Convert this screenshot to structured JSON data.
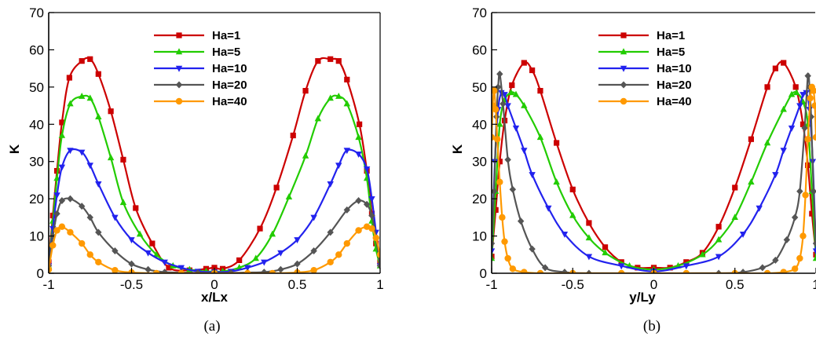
{
  "colors": {
    "Ha=1": "#cc0000",
    "Ha=5": "#22cc00",
    "Ha=10": "#2222ee",
    "Ha=20": "#555555",
    "Ha=40": "#ff9900"
  },
  "chart_data": [
    {
      "type": "line",
      "caption": "(a)",
      "xlabel": "x/Lx",
      "ylabel": "K",
      "xlim": [
        -1,
        1
      ],
      "ylim": [
        0,
        70
      ],
      "xticks": [
        "-1",
        "-0.5",
        "0",
        "0.5",
        "1"
      ],
      "yticks": [
        "0",
        "10",
        "20",
        "30",
        "40",
        "50",
        "60",
        "70"
      ],
      "legend_position": "top-center",
      "series": [
        {
          "name": "Ha=1",
          "color": "#cc0000",
          "marker": "square",
          "x": [
            -1,
            -0.975,
            -0.95,
            -0.92,
            -0.875,
            -0.8,
            -0.75,
            -0.7,
            -0.625,
            -0.55,
            -0.475,
            -0.375,
            -0.275,
            -0.15,
            -0.05,
            0,
            0.05,
            0.15,
            0.275,
            0.375,
            0.475,
            0.55,
            0.625,
            0.7,
            0.75,
            0.8,
            0.875,
            0.92,
            0.95,
            0.975,
            1
          ],
          "y": [
            3,
            15.5,
            27.5,
            40.5,
            52.5,
            57,
            57.5,
            53.5,
            43.5,
            30.5,
            17.5,
            8,
            1.5,
            0.8,
            1.2,
            1.5,
            1.2,
            3.5,
            12,
            23,
            37,
            49,
            57,
            57.5,
            57,
            52,
            40,
            27.5,
            16,
            8,
            3
          ]
        },
        {
          "name": "Ha=5",
          "color": "#22cc00",
          "marker": "triangle-up",
          "x": [
            -1,
            -0.975,
            -0.95,
            -0.92,
            -0.87,
            -0.8,
            -0.75,
            -0.7,
            -0.625,
            -0.55,
            -0.45,
            -0.35,
            -0.25,
            -0.15,
            -0.05,
            0,
            0.05,
            0.15,
            0.25,
            0.35,
            0.45,
            0.55,
            0.625,
            0.7,
            0.75,
            0.8,
            0.87,
            0.92,
            0.95,
            0.975,
            1
          ],
          "y": [
            2,
            14,
            25.5,
            37,
            45.5,
            47.5,
            47,
            42,
            31,
            19,
            10.5,
            5,
            2,
            1,
            0.5,
            0.5,
            0.5,
            1.5,
            4,
            10.5,
            20.5,
            31.5,
            41.5,
            47,
            47.5,
            45.5,
            36.5,
            25.5,
            14,
            6.5,
            2
          ]
        },
        {
          "name": "Ha=10",
          "color": "#2222ee",
          "marker": "triangle-down",
          "x": [
            -1,
            -0.975,
            -0.95,
            -0.92,
            -0.87,
            -0.8,
            -0.75,
            -0.7,
            -0.6,
            -0.5,
            -0.4,
            -0.3,
            -0.2,
            -0.1,
            0,
            0.1,
            0.2,
            0.3,
            0.4,
            0.5,
            0.6,
            0.7,
            0.75,
            0.8,
            0.87,
            0.92,
            0.95,
            0.975,
            1
          ],
          "y": [
            2,
            12,
            21,
            28.5,
            33,
            32.5,
            29,
            24,
            15,
            9,
            5.5,
            3,
            1.5,
            0.5,
            0.3,
            0.5,
            1.5,
            3,
            5.5,
            9,
            15,
            24,
            29,
            33,
            32,
            28,
            20,
            11,
            2
          ]
        },
        {
          "name": "Ha=20",
          "color": "#555555",
          "marker": "diamond",
          "x": [
            -1,
            -0.975,
            -0.95,
            -0.92,
            -0.87,
            -0.8,
            -0.75,
            -0.7,
            -0.6,
            -0.5,
            -0.4,
            -0.3,
            -0.2,
            -0.1,
            0,
            0.1,
            0.2,
            0.3,
            0.4,
            0.5,
            0.6,
            0.7,
            0.8,
            0.87,
            0.92,
            0.95,
            0.975,
            1
          ],
          "y": [
            2,
            10,
            16,
            19.5,
            20,
            18,
            15,
            11,
            6,
            2.5,
            1,
            0.3,
            0.2,
            0.1,
            0,
            0.1,
            0.2,
            0.3,
            1,
            2.5,
            6,
            11,
            17,
            19.5,
            18.5,
            15.5,
            9.5,
            2
          ]
        },
        {
          "name": "Ha=40",
          "color": "#ff9900",
          "marker": "circle",
          "x": [
            -1,
            -0.975,
            -0.95,
            -0.92,
            -0.87,
            -0.8,
            -0.75,
            -0.7,
            -0.6,
            -0.5,
            -0.35,
            -0.2,
            0,
            0.2,
            0.35,
            0.5,
            0.6,
            0.7,
            0.75,
            0.8,
            0.87,
            0.92,
            0.95,
            0.975,
            1
          ],
          "y": [
            1,
            7.5,
            11.5,
            12.5,
            11,
            8,
            5,
            3,
            0.8,
            0.2,
            0,
            0,
            0,
            0,
            0,
            0.2,
            0.8,
            3,
            5,
            8,
            11.5,
            12.5,
            12,
            9.5,
            5
          ]
        }
      ]
    },
    {
      "type": "line",
      "caption": "(b)",
      "xlabel": "y/Ly",
      "ylabel": "K",
      "xlim": [
        -1,
        1
      ],
      "ylim": [
        0,
        70
      ],
      "xticks": [
        "-1",
        "-0.5",
        "0",
        "0.5",
        "1"
      ],
      "yticks": [
        "0",
        "10",
        "20",
        "30",
        "40",
        "50",
        "60",
        "70"
      ],
      "legend_position": "top-center",
      "series": [
        {
          "name": "Ha=1",
          "color": "#cc0000",
          "marker": "square",
          "x": [
            -1,
            -0.975,
            -0.95,
            -0.92,
            -0.875,
            -0.8,
            -0.75,
            -0.7,
            -0.6,
            -0.5,
            -0.4,
            -0.3,
            -0.2,
            -0.1,
            0,
            0.1,
            0.2,
            0.3,
            0.4,
            0.5,
            0.6,
            0.7,
            0.75,
            0.8,
            0.875,
            0.92,
            0.95,
            0.975,
            1
          ],
          "y": [
            4.5,
            17,
            30,
            41,
            50.5,
            56.5,
            54.5,
            49,
            35,
            22.5,
            13.5,
            7,
            3,
            1.5,
            1.5,
            1.5,
            3,
            5.5,
            12.5,
            23,
            36,
            50,
            55,
            56.5,
            50,
            40,
            29,
            16,
            5
          ]
        },
        {
          "name": "Ha=5",
          "color": "#22cc00",
          "marker": "triangle-up",
          "x": [
            -1,
            -0.975,
            -0.95,
            -0.92,
            -0.88,
            -0.85,
            -0.8,
            -0.7,
            -0.6,
            -0.5,
            -0.4,
            -0.3,
            -0.15,
            0,
            0.15,
            0.3,
            0.4,
            0.5,
            0.6,
            0.7,
            0.8,
            0.85,
            0.88,
            0.92,
            0.95,
            0.975,
            1
          ],
          "y": [
            4,
            22,
            40,
            46.5,
            48.5,
            48,
            45,
            36.5,
            24.5,
            15.5,
            9.5,
            5.5,
            2,
            1,
            2,
            5,
            9,
            15,
            24.5,
            35,
            44,
            48,
            48.5,
            46,
            40,
            22,
            4
          ]
        },
        {
          "name": "Ha=10",
          "color": "#2222ee",
          "marker": "triangle-down",
          "x": [
            -1,
            -0.98,
            -0.96,
            -0.94,
            -0.92,
            -0.9,
            -0.85,
            -0.8,
            -0.75,
            -0.65,
            -0.55,
            -0.4,
            -0.2,
            0,
            0.2,
            0.4,
            0.55,
            0.65,
            0.75,
            0.8,
            0.85,
            0.9,
            0.92,
            0.94,
            0.96,
            0.98,
            1
          ],
          "y": [
            6,
            30,
            44,
            48.5,
            48,
            45,
            39,
            33,
            26.5,
            17.5,
            10.5,
            4.5,
            2,
            0.5,
            2,
            4.5,
            10.5,
            17.5,
            26.5,
            33,
            39,
            45,
            48,
            48.5,
            44,
            30,
            6
          ]
        },
        {
          "name": "Ha=20",
          "color": "#555555",
          "marker": "diamond",
          "x": [
            -1,
            -0.985,
            -0.97,
            -0.96,
            -0.95,
            -0.93,
            -0.9,
            -0.87,
            -0.82,
            -0.75,
            -0.67,
            -0.55,
            -0.4,
            0,
            0.4,
            0.55,
            0.67,
            0.75,
            0.82,
            0.87,
            0.9,
            0.93,
            0.95,
            0.96,
            0.97,
            0.985,
            1
          ],
          "y": [
            8,
            22,
            42,
            50,
            53.5,
            45.5,
            30.5,
            22.5,
            14,
            6.5,
            1.5,
            0.3,
            0,
            0,
            0,
            0.3,
            1.5,
            3.5,
            9,
            15,
            22,
            39,
            53,
            50,
            42,
            22,
            8
          ]
        },
        {
          "name": "Ha=40",
          "color": "#ff9900",
          "marker": "circle",
          "x": [
            -1,
            -0.993,
            -0.985,
            -0.975,
            -0.965,
            -0.95,
            -0.935,
            -0.92,
            -0.9,
            -0.87,
            -0.8,
            -0.7,
            -0.5,
            -0.2,
            0,
            0.2,
            0.5,
            0.7,
            0.8,
            0.87,
            0.9,
            0.92,
            0.935,
            0.95,
            0.965,
            0.975,
            0.985,
            0.993,
            1
          ],
          "y": [
            36.5,
            45,
            49,
            44,
            36,
            24.5,
            15,
            8.5,
            4,
            1.2,
            0.3,
            0,
            0,
            0,
            0,
            0,
            0,
            0,
            0.3,
            1.2,
            4,
            10,
            21,
            36,
            47,
            50,
            49,
            45,
            36.5
          ]
        }
      ]
    }
  ]
}
